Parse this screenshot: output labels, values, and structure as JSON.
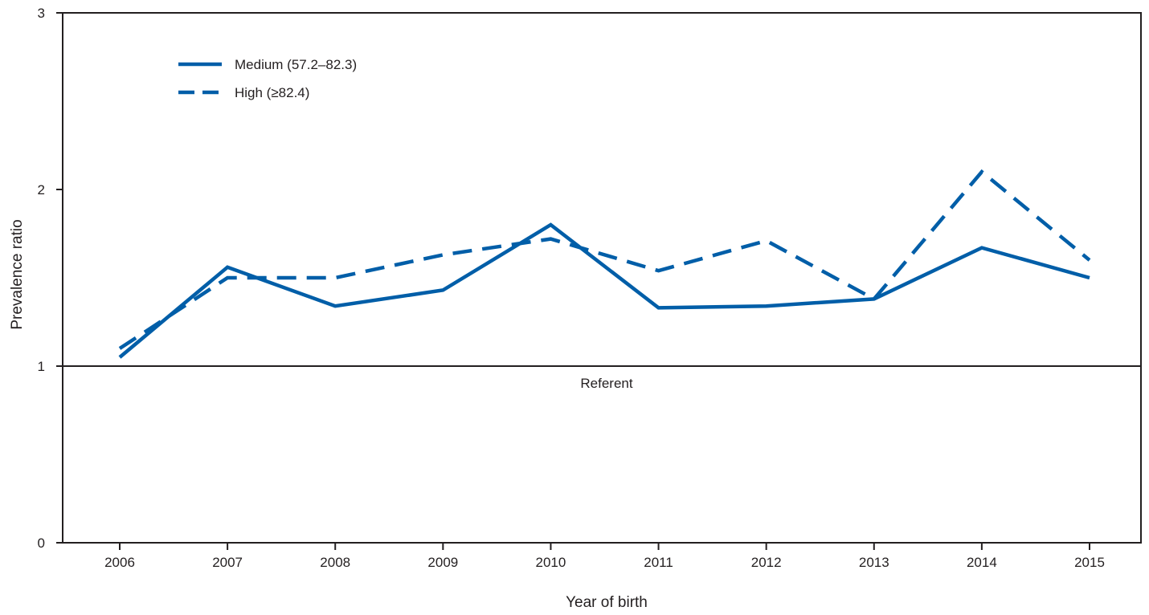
{
  "chart_data": {
    "type": "line",
    "title": "",
    "xlabel": "Year of birth",
    "ylabel": "Prevalence ratio",
    "x": [
      "2006",
      "2007",
      "2008",
      "2009",
      "2010",
      "2011",
      "2012",
      "2013",
      "2014",
      "2015"
    ],
    "y_ticks": [
      "0",
      "1",
      "2",
      "3"
    ],
    "ylim": [
      0,
      3
    ],
    "grid": false,
    "legend_position": "top-left",
    "reference_line": {
      "value": 1,
      "label": "Referent"
    },
    "series": [
      {
        "name": "Medium (57.2–82.3)",
        "style": "solid",
        "color": "#005ea8",
        "values": [
          1.05,
          1.56,
          1.34,
          1.43,
          1.8,
          1.33,
          1.34,
          1.38,
          1.67,
          1.5
        ]
      },
      {
        "name": "High (≥82.4)",
        "style": "dashed",
        "color": "#005ea8",
        "values": [
          1.1,
          1.5,
          1.5,
          1.63,
          1.72,
          1.54,
          1.71,
          1.38,
          2.1,
          1.6
        ]
      }
    ]
  }
}
